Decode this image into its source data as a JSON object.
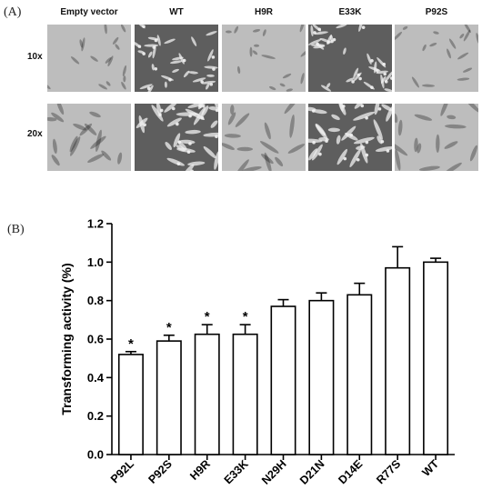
{
  "panel_a": {
    "label": "(A)",
    "columns": [
      "Empty vector",
      "WT",
      "H9R",
      "E33K",
      "P92S"
    ],
    "rows": [
      "10x",
      "20x"
    ],
    "tile_tones": [
      "light",
      "dark",
      "light",
      "dark",
      "light"
    ]
  },
  "panel_b": {
    "label": "(B)"
  },
  "colors": {
    "light_tile": "#bdbdbd",
    "dark_tile": "#5e5e5e",
    "cell_light": "#f2f2f2",
    "cell_dark": "#1e1e1e"
  },
  "chart_data": {
    "type": "bar",
    "categories": [
      "P92L",
      "P92S",
      "H9R",
      "E33K",
      "N29H",
      "D21N",
      "D14E",
      "R77S",
      "WT"
    ],
    "values": [
      0.52,
      0.59,
      0.625,
      0.625,
      0.77,
      0.8,
      0.83,
      0.97,
      1.0
    ],
    "errors": [
      0.015,
      0.03,
      0.05,
      0.05,
      0.035,
      0.04,
      0.06,
      0.11,
      0.02
    ],
    "significance": [
      "*",
      "*",
      "*",
      "*",
      "",
      "",
      "",
      "",
      ""
    ],
    "xlabel": "",
    "ylabel": "Transforming activity (%)",
    "ylim": [
      0,
      1.2
    ],
    "yticks": [
      "0.0",
      "0.2",
      "0.4",
      "0.6",
      "0.8",
      "1.0",
      "1.2"
    ],
    "grid": false,
    "bar_fill": "#ffffff",
    "bar_stroke": "#000000"
  }
}
